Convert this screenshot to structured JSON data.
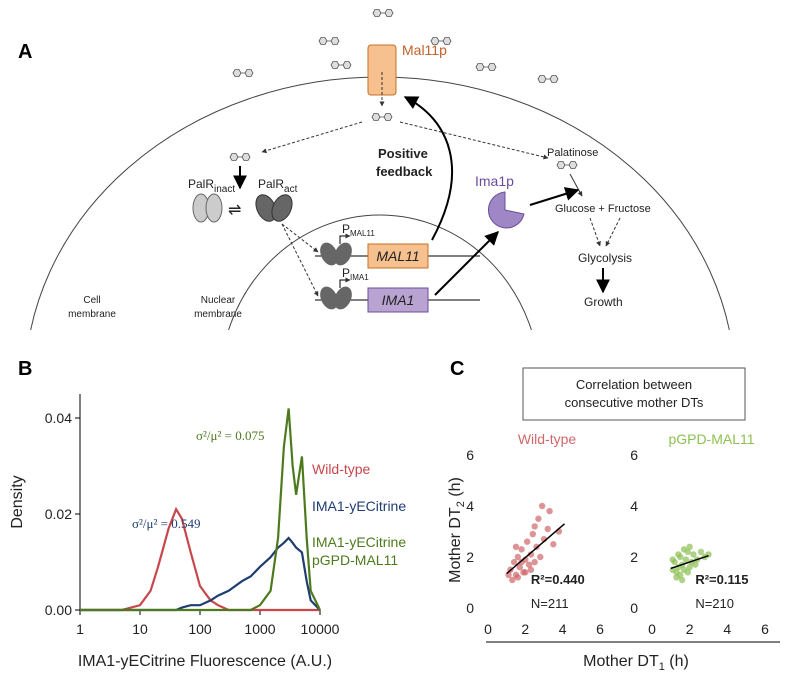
{
  "panel_a": {
    "label": "A",
    "mal11p": "Mal11p",
    "positive_feedback": [
      "Positive",
      "feedback"
    ],
    "palr_inact": {
      "main": "PalR",
      "sub": "inact"
    },
    "palr_act": {
      "main": "PalR",
      "sub": "act"
    },
    "ima1p": "Ima1p",
    "palatinose": "Palatinose",
    "glucose_fructose": "Glucose + Fructose",
    "glycolysis": "Glycolysis",
    "growth": "Growth",
    "cell_membrane": [
      "Cell",
      "membrane"
    ],
    "nuclear_membrane": [
      "Nuclear",
      "membrane"
    ],
    "p_mal11": {
      "main": "P",
      "sub": "MAL11"
    },
    "p_ima1": {
      "main": "P",
      "sub": "IMA1"
    },
    "gene_mal11": "MAL11",
    "gene_ima1": "IMA1"
  },
  "panel_b": {
    "label": "B"
  },
  "panel_c": {
    "label": "C",
    "title": [
      "Correlation between",
      "consecutive mother DTs"
    ],
    "xlabel": {
      "main": "Mother DT",
      "sub": "1",
      "tail": " (h)"
    },
    "ylabel": {
      "main": "Mother DT",
      "sub": "2",
      "tail": " (h)"
    }
  },
  "chart_data": [
    {
      "type": "line",
      "xscale": "log",
      "xlabel": "IMA1-yECitrine Fluorescence (A.U.)",
      "ylabel": "Density",
      "x": [
        1,
        2,
        5,
        10,
        15,
        20,
        30,
        40,
        50,
        70,
        100,
        150,
        200,
        300,
        500,
        700,
        1000,
        1500,
        2000,
        2500,
        3000,
        3500,
        4000,
        5000,
        6000,
        7000,
        10000
      ],
      "xlim": [
        1,
        10000
      ],
      "xticks": [
        1,
        10,
        100,
        1000,
        10000
      ],
      "ylim": [
        0,
        0.045
      ],
      "yticks": [
        {
          "value": 0,
          "label": "0.00"
        },
        {
          "value": 0.02,
          "label": "0.02"
        },
        {
          "value": 0.04,
          "label": "0.04"
        }
      ],
      "series": [
        {
          "name": "Wild-type",
          "color": "#c8474b",
          "values": [
            0,
            0,
            0,
            0.001,
            0.004,
            0.009,
            0.017,
            0.021,
            0.019,
            0.012,
            0.005,
            0.002,
            0.001,
            0,
            0,
            0,
            0,
            0,
            0,
            0,
            0,
            0,
            0,
            0,
            0,
            0,
            0
          ]
        },
        {
          "name": "IMA1-yECitrine",
          "color": "#1f3d72",
          "annotation": "σ²/μ² = 0.549",
          "values": [
            0,
            0,
            0,
            0,
            0,
            0,
            0,
            0,
            0.0005,
            0.001,
            0.001,
            0.002,
            0.003,
            0.004,
            0.006,
            0.007,
            0.009,
            0.011,
            0.013,
            0.014,
            0.015,
            0.014,
            0.013,
            0.012,
            0.006,
            0.002,
            0
          ]
        },
        {
          "name": "IMA1-yECitrine pGPD-MAL11",
          "color": "#4e7a1e",
          "annotation": "σ²/μ² = 0.075",
          "values": [
            0,
            0,
            0,
            0,
            0,
            0,
            0,
            0,
            0,
            0,
            0,
            0,
            0,
            0,
            0,
            0,
            0.001,
            0.004,
            0.015,
            0.034,
            0.042,
            0.03,
            0.024,
            0.032,
            0.015,
            0.004,
            0
          ]
        }
      ]
    },
    {
      "type": "scatter",
      "title": "Wild-type",
      "color": "#d0676a",
      "x": [
        1.2,
        1.4,
        1.5,
        1.6,
        1.7,
        1.8,
        1.9,
        2.0,
        2.1,
        2.2,
        2.3,
        2.4,
        2.5,
        2.6,
        2.7,
        2.8,
        3.0,
        3.2,
        3.5,
        3.8,
        1.3,
        1.1,
        1.6,
        2.0,
        2.3,
        1.8,
        2.9,
        2.5,
        1.5,
        3.3
      ],
      "values": [
        1.5,
        1.8,
        1.3,
        2.0,
        1.6,
        2.3,
        1.4,
        1.9,
        2.6,
        1.7,
        2.1,
        2.9,
        1.8,
        2.4,
        3.5,
        2.0,
        2.7,
        3.1,
        2.5,
        3.0,
        1.1,
        1.3,
        1.2,
        1.4,
        1.5,
        1.8,
        4.0,
        3.2,
        2.4,
        3.8
      ],
      "fit": {
        "x": [
          1,
          4.1
        ],
        "y": [
          1.35,
          3.3
        ]
      },
      "xlim": [
        0,
        6
      ],
      "xticks": [
        0,
        2,
        4,
        6
      ],
      "ylim": [
        0,
        6
      ],
      "yticks": [
        0,
        2,
        4,
        6
      ],
      "annotations": [
        "R²=0.440",
        "N=211"
      ]
    },
    {
      "type": "scatter",
      "title": "pGPD-MAL11",
      "color": "#8cc152",
      "x": [
        1.1,
        1.2,
        1.3,
        1.4,
        1.5,
        1.6,
        1.7,
        1.8,
        1.9,
        2.0,
        2.1,
        2.2,
        2.4,
        2.6,
        2.8,
        1.3,
        1.5,
        1.7,
        2.0,
        1.1,
        1.4,
        1.9,
        2.3,
        1.6,
        3.0
      ],
      "values": [
        1.5,
        1.8,
        1.4,
        1.6,
        2.0,
        1.7,
        1.5,
        1.9,
        2.2,
        1.6,
        1.8,
        2.1,
        1.9,
        2.2,
        2.0,
        1.2,
        1.3,
        2.3,
        2.4,
        1.9,
        2.1,
        1.4,
        1.7,
        1.1,
        2.1
      ],
      "fit": {
        "x": [
          1,
          3
        ],
        "y": [
          1.55,
          2.05
        ]
      },
      "xlim": [
        0,
        6
      ],
      "xticks": [
        0,
        2,
        4,
        6
      ],
      "ylim": [
        0,
        6
      ],
      "yticks": [
        0,
        2,
        4,
        6
      ],
      "annotations": [
        "R²=0.115",
        "N=210"
      ]
    }
  ]
}
